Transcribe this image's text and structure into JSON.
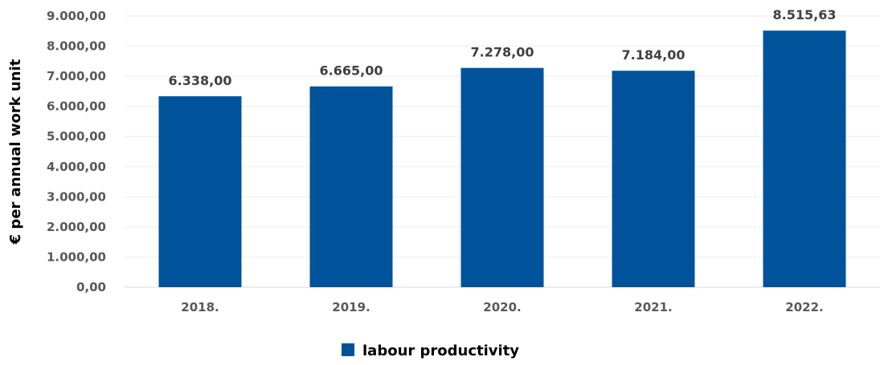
{
  "chart_data": {
    "type": "bar",
    "title": "",
    "xlabel": "",
    "ylabel": "€ per annual work unit",
    "categories": [
      "2018.",
      "2019.",
      "2020.",
      "2021.",
      "2022."
    ],
    "series": [
      {
        "name": "labour productivity",
        "values": [
          6338.0,
          6665.0,
          7278.0,
          7184.0,
          8515.63
        ]
      }
    ],
    "data_labels": [
      "6.338,00",
      "6.665,00",
      "7.278,00",
      "7.184,00",
      "8.515,63"
    ],
    "ylim": [
      0,
      9000
    ],
    "y_ticks": [
      0,
      1000,
      2000,
      3000,
      4000,
      5000,
      6000,
      7000,
      8000,
      9000
    ],
    "y_tick_labels": [
      "0,00",
      "1.000,00",
      "2.000,00",
      "3.000,00",
      "4.000,00",
      "5.000,00",
      "6.000,00",
      "7.000,00",
      "8.000,00",
      "9.000,00"
    ],
    "grid": true,
    "legend": {
      "position": "bottom",
      "entries": [
        "labour productivity"
      ]
    },
    "colors": {
      "bar": "#00539b",
      "grid": "#eeeeee",
      "tick_text": "#595959",
      "label_text": "#404040",
      "axis_title": "#000000"
    }
  }
}
